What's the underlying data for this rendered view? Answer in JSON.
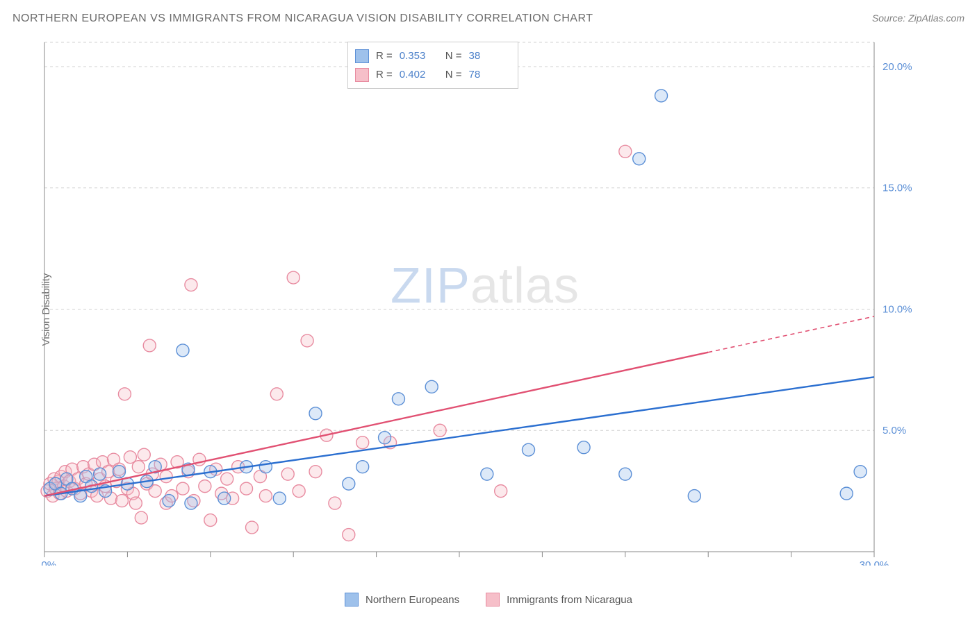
{
  "title": "NORTHERN EUROPEAN VS IMMIGRANTS FROM NICARAGUA VISION DISABILITY CORRELATION CHART",
  "source_label": "Source: ",
  "source_name": "ZipAtlas.com",
  "ylabel": "Vision Disability",
  "watermark": {
    "part1": "ZIP",
    "part2": "atlas"
  },
  "chart": {
    "type": "scatter-with-regression",
    "background_color": "#ffffff",
    "grid_color": "#d0d0d0",
    "axis_color": "#888888",
    "xlim": [
      0,
      30
    ],
    "ylim": [
      0,
      21
    ],
    "x_ticks": [
      0,
      3,
      6,
      9,
      12,
      15,
      18,
      21,
      24,
      27,
      30
    ],
    "x_tick_labels_shown": {
      "0": "0.0%",
      "30": "30.0%"
    },
    "y_ticks": [
      5,
      10,
      15,
      20
    ],
    "y_tick_labels": {
      "5": "5.0%",
      "10": "10.0%",
      "15": "15.0%",
      "20": "20.0%"
    },
    "tick_label_color": "#5b8fd6",
    "tick_label_fontsize": 15,
    "marker_radius": 9,
    "marker_stroke_width": 1.4,
    "marker_fill_opacity": 0.35,
    "series": [
      {
        "id": "northern_europeans",
        "label": "Northern Europeans",
        "color_fill": "#9ec1eb",
        "color_stroke": "#5b8fd6",
        "R": "0.353",
        "N": "38",
        "regression": {
          "x1": 0,
          "y1": 2.3,
          "x2": 30,
          "y2": 7.2,
          "color": "#2b6fd0",
          "width": 2.4,
          "dash_after_x": null
        },
        "points": [
          [
            0.2,
            2.6
          ],
          [
            0.4,
            2.8
          ],
          [
            0.6,
            2.4
          ],
          [
            0.8,
            3.0
          ],
          [
            1.0,
            2.6
          ],
          [
            1.3,
            2.3
          ],
          [
            1.5,
            3.1
          ],
          [
            1.7,
            2.7
          ],
          [
            2.0,
            3.2
          ],
          [
            2.2,
            2.5
          ],
          [
            2.7,
            3.3
          ],
          [
            3.0,
            2.8
          ],
          [
            3.7,
            2.9
          ],
          [
            4.0,
            3.5
          ],
          [
            4.5,
            2.1
          ],
          [
            5.0,
            8.3
          ],
          [
            5.2,
            3.4
          ],
          [
            5.3,
            2.0
          ],
          [
            6.0,
            3.3
          ],
          [
            6.5,
            2.2
          ],
          [
            7.3,
            3.5
          ],
          [
            8.0,
            3.5
          ],
          [
            8.5,
            2.2
          ],
          [
            9.8,
            5.7
          ],
          [
            11.0,
            2.8
          ],
          [
            11.5,
            3.5
          ],
          [
            12.3,
            4.7
          ],
          [
            12.8,
            6.3
          ],
          [
            14.0,
            6.8
          ],
          [
            16.0,
            3.2
          ],
          [
            17.5,
            4.2
          ],
          [
            19.5,
            4.3
          ],
          [
            21.0,
            3.2
          ],
          [
            21.5,
            16.2
          ],
          [
            22.3,
            18.8
          ],
          [
            23.5,
            2.3
          ],
          [
            29.0,
            2.4
          ],
          [
            29.5,
            3.3
          ]
        ]
      },
      {
        "id": "immigrants_nicaragua",
        "label": "Immigrants from Nicaragua",
        "color_fill": "#f6bfc9",
        "color_stroke": "#e88ba0",
        "R": "0.402",
        "N": "78",
        "regression": {
          "x1": 0,
          "y1": 2.3,
          "x2": 30,
          "y2": 9.7,
          "color": "#e15072",
          "width": 2.4,
          "dash_after_x": 24
        },
        "points": [
          [
            0.1,
            2.5
          ],
          [
            0.2,
            2.8
          ],
          [
            0.3,
            2.3
          ],
          [
            0.35,
            3.0
          ],
          [
            0.4,
            2.6
          ],
          [
            0.5,
            2.9
          ],
          [
            0.55,
            2.4
          ],
          [
            0.6,
            3.1
          ],
          [
            0.7,
            2.7
          ],
          [
            0.75,
            3.3
          ],
          [
            0.8,
            2.5
          ],
          [
            0.9,
            2.9
          ],
          [
            1.0,
            3.4
          ],
          [
            1.1,
            2.6
          ],
          [
            1.2,
            3.0
          ],
          [
            1.3,
            2.4
          ],
          [
            1.4,
            3.5
          ],
          [
            1.5,
            2.8
          ],
          [
            1.6,
            3.2
          ],
          [
            1.7,
            2.5
          ],
          [
            1.8,
            3.6
          ],
          [
            1.9,
            2.3
          ],
          [
            2.0,
            3.0
          ],
          [
            2.1,
            3.7
          ],
          [
            2.2,
            2.7
          ],
          [
            2.3,
            3.3
          ],
          [
            2.4,
            2.2
          ],
          [
            2.5,
            3.8
          ],
          [
            2.6,
            2.9
          ],
          [
            2.7,
            3.4
          ],
          [
            2.8,
            2.1
          ],
          [
            2.9,
            6.5
          ],
          [
            3.0,
            2.6
          ],
          [
            3.1,
            3.9
          ],
          [
            3.2,
            2.4
          ],
          [
            3.3,
            2.0
          ],
          [
            3.4,
            3.5
          ],
          [
            3.5,
            1.4
          ],
          [
            3.6,
            4.0
          ],
          [
            3.7,
            2.8
          ],
          [
            3.8,
            8.5
          ],
          [
            3.9,
            3.2
          ],
          [
            4.0,
            2.5
          ],
          [
            4.2,
            3.6
          ],
          [
            4.4,
            2.0
          ],
          [
            4.4,
            3.1
          ],
          [
            4.6,
            2.3
          ],
          [
            4.8,
            3.7
          ],
          [
            5.0,
            2.6
          ],
          [
            5.2,
            3.3
          ],
          [
            5.3,
            11.0
          ],
          [
            5.4,
            2.1
          ],
          [
            5.6,
            3.8
          ],
          [
            5.8,
            2.7
          ],
          [
            6.0,
            1.3
          ],
          [
            6.2,
            3.4
          ],
          [
            6.4,
            2.4
          ],
          [
            6.6,
            3.0
          ],
          [
            6.8,
            2.2
          ],
          [
            7.0,
            3.5
          ],
          [
            7.3,
            2.6
          ],
          [
            7.5,
            1.0
          ],
          [
            7.8,
            3.1
          ],
          [
            8.0,
            2.3
          ],
          [
            8.4,
            6.5
          ],
          [
            8.8,
            3.2
          ],
          [
            9.0,
            11.3
          ],
          [
            9.2,
            2.5
          ],
          [
            9.5,
            8.7
          ],
          [
            9.8,
            3.3
          ],
          [
            10.2,
            4.8
          ],
          [
            10.5,
            2.0
          ],
          [
            11.0,
            0.7
          ],
          [
            11.5,
            4.5
          ],
          [
            12.5,
            4.5
          ],
          [
            14.3,
            5.0
          ],
          [
            16.5,
            2.5
          ],
          [
            21.0,
            16.5
          ]
        ]
      }
    ]
  },
  "legend_top": {
    "r_label": "R =",
    "n_label": "N ="
  }
}
